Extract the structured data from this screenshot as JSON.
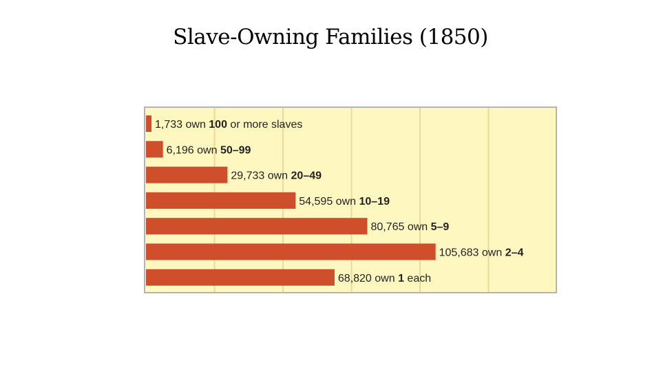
{
  "chart_data": {
    "type": "bar",
    "orientation": "horizontal",
    "title": "Slave-Owning Families (1850)",
    "xlabel": "",
    "ylabel": "",
    "xlim": [
      0,
      150000
    ],
    "grid": true,
    "categories": [
      "100 or more slaves",
      "50–99",
      "20–49",
      "10–19",
      "5–9",
      "2–4",
      "1 each"
    ],
    "values": [
      1733,
      6196,
      29733,
      54595,
      80765,
      105683,
      68820
    ],
    "labels": [
      {
        "count": "1,733",
        "own": " own ",
        "range": "100",
        "suffix": " or more slaves"
      },
      {
        "count": "6,196",
        "own": " own ",
        "range": "50–99",
        "suffix": ""
      },
      {
        "count": "29,733",
        "own": " own ",
        "range": "20–49",
        "suffix": ""
      },
      {
        "count": "54,595",
        "own": " own ",
        "range": "10–19",
        "suffix": ""
      },
      {
        "count": "80,765",
        "own": " own ",
        "range": "5–9",
        "suffix": ""
      },
      {
        "count": "105,683",
        "own": " own ",
        "range": "2–4",
        "suffix": ""
      },
      {
        "count": "68,820",
        "own": " own ",
        "range": "1",
        "suffix": " each"
      }
    ]
  },
  "colors": {
    "background": "#fff7c0",
    "bar": "#cf4e2b",
    "grid": "#ecd89a",
    "border": "#b4b4b4"
  }
}
